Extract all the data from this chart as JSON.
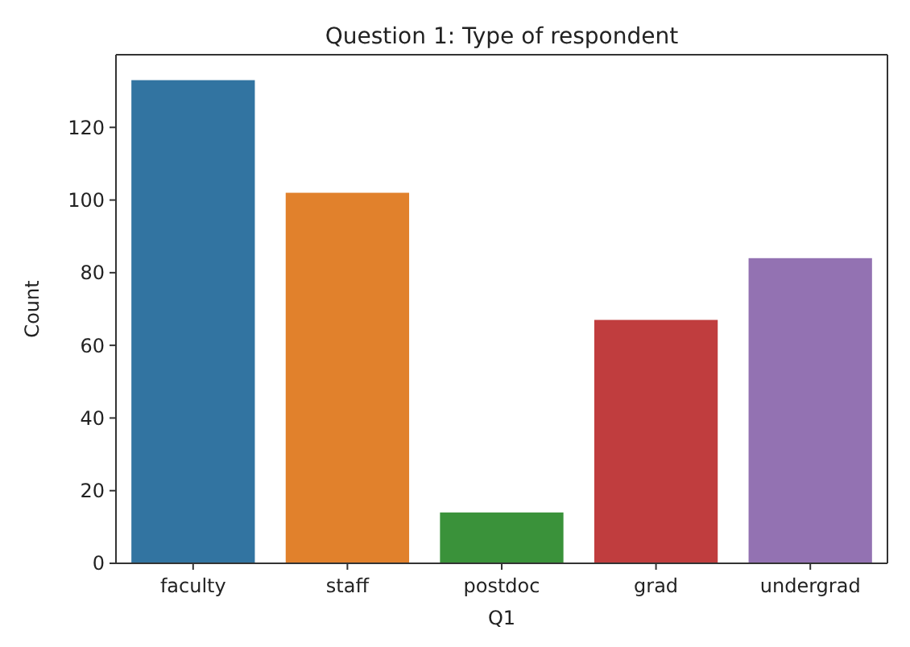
{
  "chart_data": {
    "type": "bar",
    "title": "Question 1: Type of respondent",
    "xlabel": "Q1",
    "ylabel": "Count",
    "categories": [
      "faculty",
      "staff",
      "postdoc",
      "grad",
      "undergrad"
    ],
    "values": [
      133,
      102,
      14,
      67,
      84
    ],
    "colors": [
      "#3274a1",
      "#e1812c",
      "#3a923a",
      "#c03d3e",
      "#9372b2"
    ],
    "ylim": [
      0,
      140
    ],
    "yticks": [
      0,
      20,
      40,
      60,
      80,
      100,
      120
    ],
    "grid": false
  }
}
